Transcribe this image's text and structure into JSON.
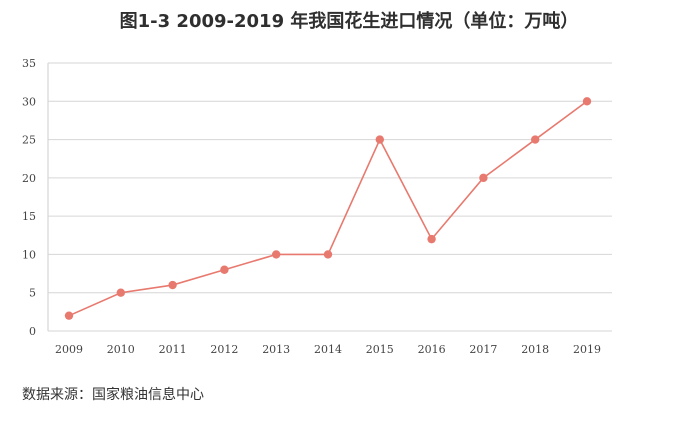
{
  "title": "图1-3   2009-2019 年我国花生进口情况（单位：万吨）",
  "source": "数据来源：国家粮油信息中心",
  "colors": {
    "line": "#e8796e",
    "point": "#e8796e",
    "grid": "#d6d6d6",
    "axis": "#cccccc",
    "tick_text": "#444444"
  },
  "chart_data": {
    "type": "line",
    "title": "图1-3   2009-2019 年我国花生进口情况（单位：万吨）",
    "xlabel": "",
    "ylabel": "",
    "categories": [
      "2009",
      "2010",
      "2011",
      "2012",
      "2013",
      "2014",
      "2015",
      "2016",
      "2017",
      "2018",
      "2019"
    ],
    "series": [
      {
        "values": [
          2,
          5,
          6,
          8,
          10,
          10,
          25,
          12,
          20,
          25,
          30
        ]
      }
    ],
    "y_ticks": [
      "0",
      "5",
      "10",
      "15",
      "20",
      "25",
      "30",
      "35"
    ],
    "ylim": [
      0,
      35
    ],
    "grid": true,
    "legend": "none"
  }
}
